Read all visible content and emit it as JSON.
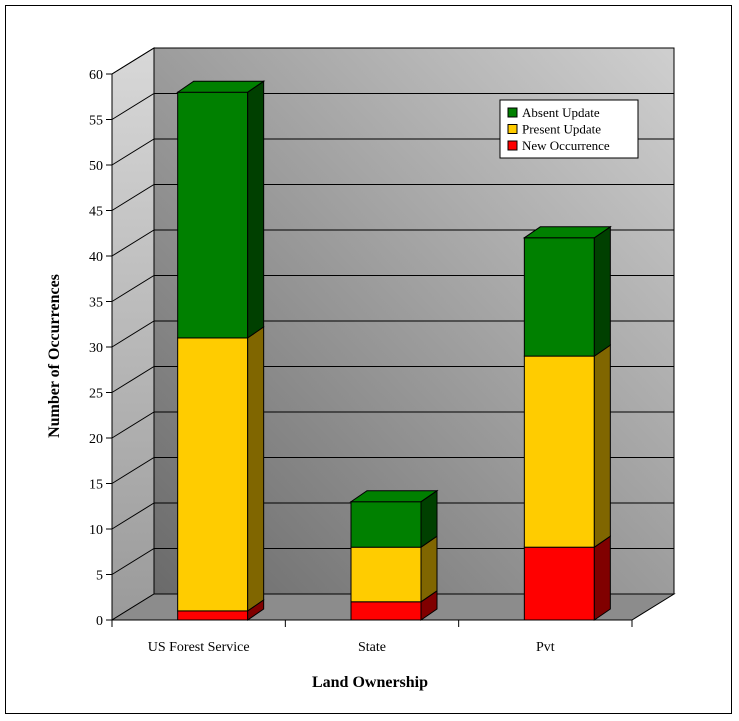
{
  "chart_data": {
    "type": "bar",
    "stacked": true,
    "three_d": true,
    "categories": [
      "US Forest Service",
      "State",
      "Pvt"
    ],
    "series": [
      {
        "name": "New Occurrence",
        "values": [
          1,
          2,
          8
        ]
      },
      {
        "name": "Present Update",
        "values": [
          30,
          6,
          21
        ]
      },
      {
        "name": "Absent Update",
        "values": [
          27,
          5,
          13
        ]
      }
    ],
    "xlabel": "Land Ownership",
    "ylabel": "Number of Occurrences",
    "ylim": [
      0,
      60
    ],
    "yticks": [
      0,
      5,
      10,
      15,
      20,
      25,
      30,
      35,
      40,
      45,
      50,
      55,
      60
    ],
    "grid": true,
    "legend": "top-right",
    "legend_order": [
      "Absent Update",
      "Present Update",
      "New Occurrence"
    ],
    "colors": {
      "New Occurrence": "#ff0000",
      "Present Update": "#ffcc00",
      "Absent Update": "#008000",
      "wall_dark": "#6e6e6e",
      "wall_light": "#c8c8c8"
    }
  }
}
